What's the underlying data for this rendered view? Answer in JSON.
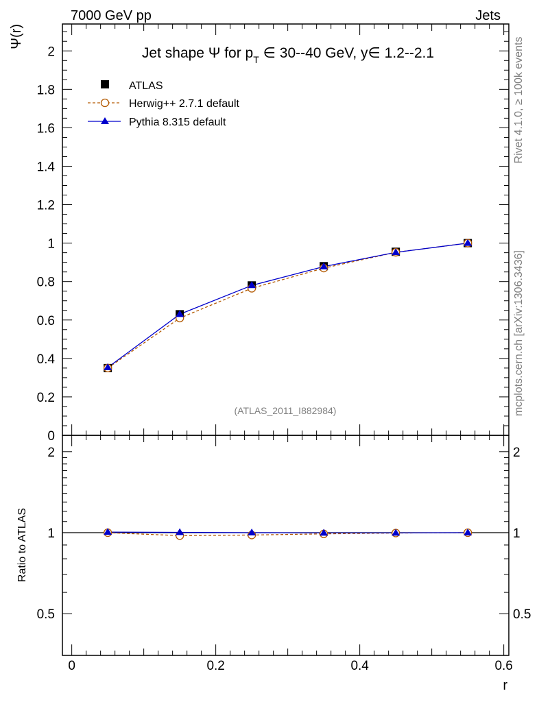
{
  "header": {
    "energy_label": "7000 GeV pp",
    "category_label": "Jets"
  },
  "side_labels": {
    "rivet": "Rivet 4.1.0, ≥ 100k events",
    "mcplots": "mcplots.cern.ch [arXiv:1306.3436]"
  },
  "colors": {
    "atlas": "#000000",
    "herwig": "#b35900",
    "pythia": "#0000cc",
    "watermark": "#808080"
  },
  "chart_data": [
    {
      "type": "line",
      "panel": "main",
      "title_parts": {
        "a": "Jet shape Ψ for p",
        "sub": "T",
        "b": " ∈ 30--40 GeV, y∈ 1.2--2.1"
      },
      "ylabel": "Ψ(r)",
      "xlabel": "",
      "xlim": [
        -0.013,
        0.607
      ],
      "ylim": [
        0,
        2.14
      ],
      "yticks": [
        0,
        0.2,
        0.4,
        0.6,
        0.8,
        1,
        1.2,
        1.4,
        1.6,
        1.8,
        2
      ],
      "ytick_labels": [
        "0",
        "0.2",
        "0.4",
        "0.6",
        "0.8",
        "1",
        "1.2",
        "1.4",
        "1.6",
        "1.8",
        "2"
      ],
      "x": [
        0.05,
        0.15,
        0.25,
        0.35,
        0.45,
        0.55
      ],
      "watermark": "(ATLAS_2011_I882984)",
      "legend_position": "top-left",
      "series": [
        {
          "name": "ATLAS",
          "key": "atlas",
          "marker": "square",
          "values": [
            0.35,
            0.63,
            0.78,
            0.88,
            0.955,
            1.0
          ]
        },
        {
          "name": "Herwig++ 2.7.1 default",
          "key": "herwig",
          "marker": "open-circle",
          "dashed": true,
          "values": [
            0.35,
            0.61,
            0.765,
            0.87,
            0.952,
            1.0
          ]
        },
        {
          "name": "Pythia 8.315 default",
          "key": "pythia",
          "marker": "triangle",
          "values": [
            0.353,
            0.63,
            0.78,
            0.878,
            0.952,
            1.0
          ]
        }
      ]
    },
    {
      "type": "line",
      "panel": "ratio",
      "ylabel": "Ratio to ATLAS",
      "xlabel": "r",
      "xlim": [
        -0.013,
        0.607
      ],
      "ylim": [
        0.35,
        2.3
      ],
      "yticks": [
        0.5,
        1,
        2
      ],
      "ytick_labels": [
        "0.5",
        "1",
        "2"
      ],
      "xticks": [
        0,
        0.2,
        0.4,
        0.6
      ],
      "xtick_labels": [
        "0",
        "0.2",
        "0.4",
        "0.6"
      ],
      "x": [
        0.05,
        0.15,
        0.25,
        0.35,
        0.45,
        0.55
      ],
      "series": [
        {
          "name": "Herwig++ 2.7.1 default",
          "key": "herwig",
          "marker": "open-circle",
          "dashed": true,
          "values": [
            1.0,
            0.975,
            0.98,
            0.99,
            0.997,
            1.0
          ]
        },
        {
          "name": "Pythia 8.315 default",
          "key": "pythia",
          "marker": "triangle",
          "values": [
            1.005,
            1.003,
            1.0,
            0.998,
            0.998,
            1.0
          ]
        }
      ]
    }
  ]
}
